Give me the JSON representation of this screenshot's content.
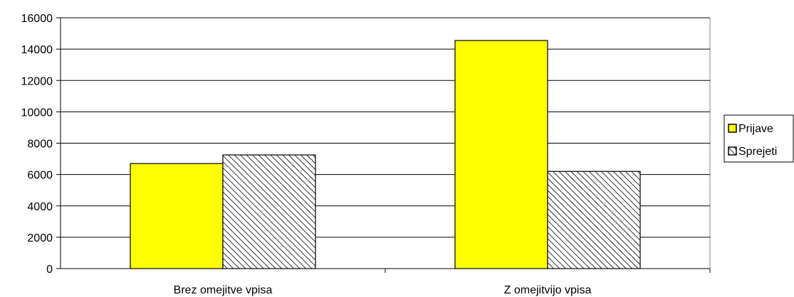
{
  "chart_data": {
    "type": "bar",
    "categories": [
      "Brez omejitve vpisa",
      "Z omejitvijo vpisa"
    ],
    "series": [
      {
        "name": "Prijave",
        "values": [
          6700,
          14550
        ],
        "color": "#ffff00",
        "pattern": "solid"
      },
      {
        "name": "Sprejeti",
        "values": [
          7250,
          6200
        ],
        "color": "#ffffff",
        "pattern": "diagonal-hatch"
      }
    ],
    "yticks": [
      0,
      2000,
      4000,
      6000,
      8000,
      10000,
      12000,
      14000,
      16000
    ],
    "ylim": [
      0,
      16000
    ],
    "grid": true,
    "legend_position": "right",
    "title": "",
    "xlabel": "",
    "ylabel": ""
  }
}
